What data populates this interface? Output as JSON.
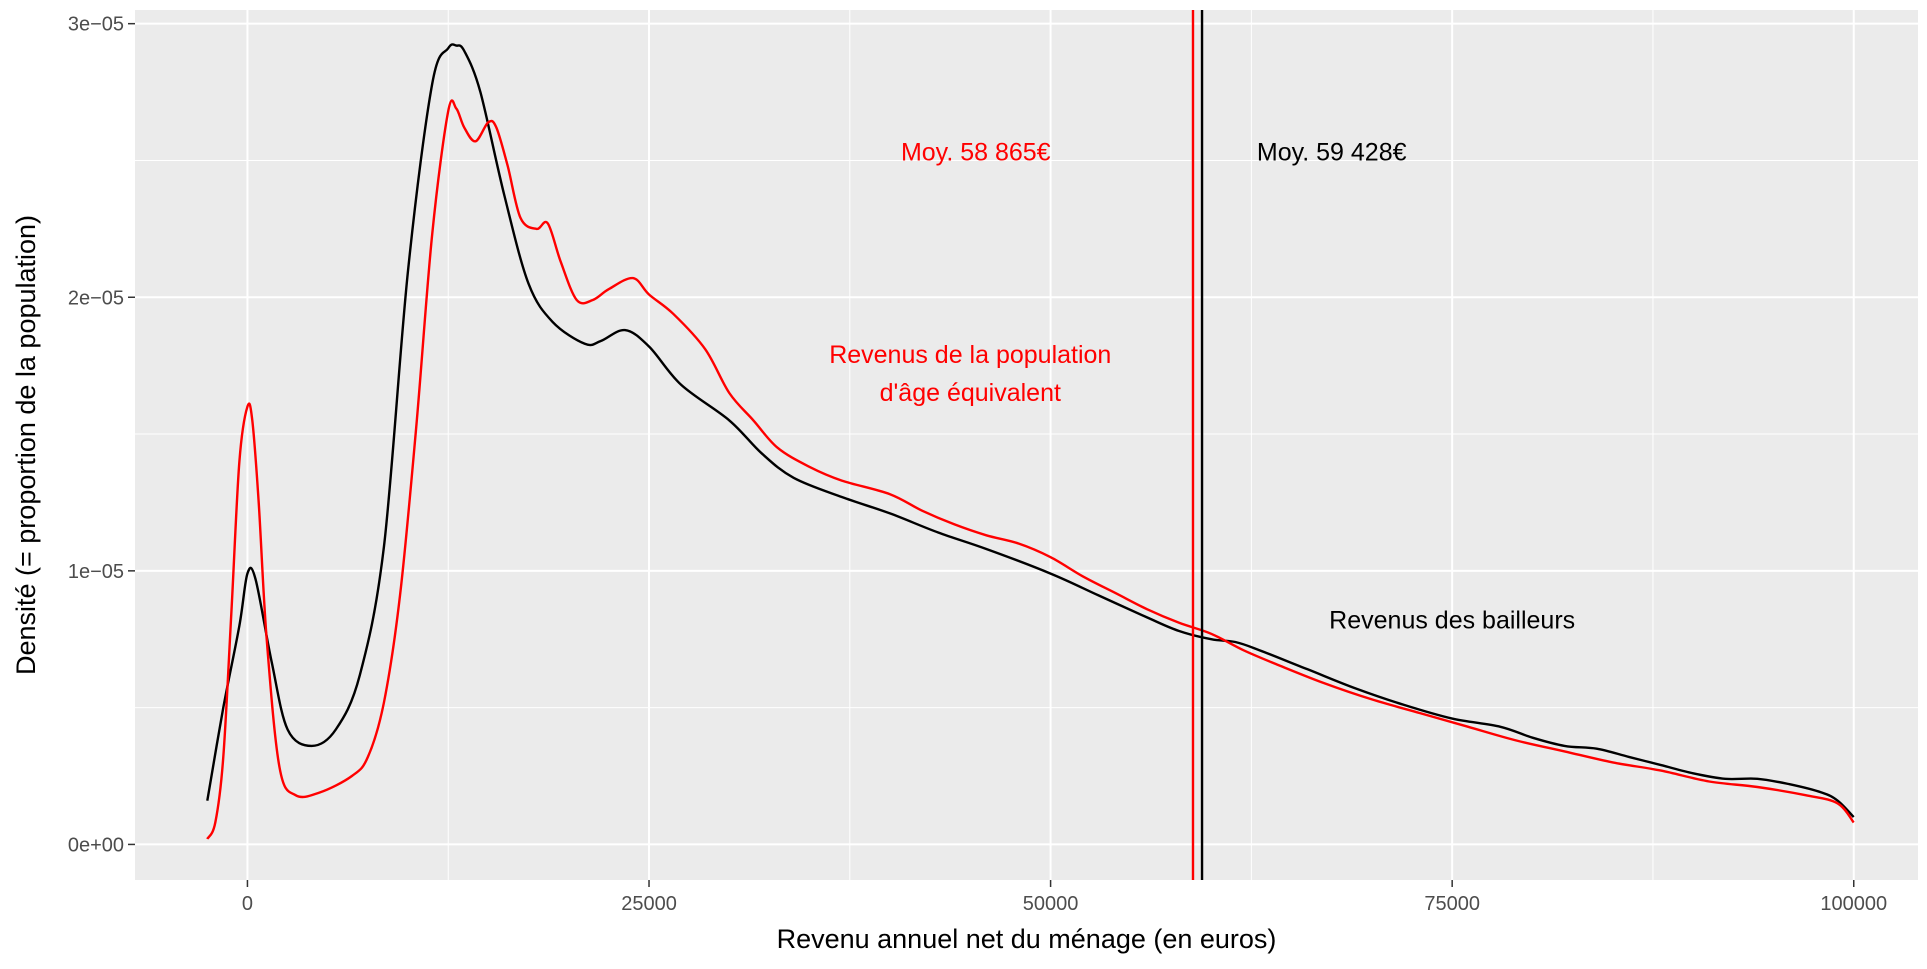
{
  "chart_data": {
    "type": "line",
    "title": "",
    "xlabel": "Revenu annuel net du ménage (en euros)",
    "ylabel": "Densité (= proportion de la population)",
    "xlim": [
      -7000,
      104000
    ],
    "ylim": [
      -1.3e-06,
      3.05e-05
    ],
    "grid": true,
    "legend": "none",
    "x_ticks": [
      {
        "value": 0,
        "label": "0"
      },
      {
        "value": 25000,
        "label": "25000"
      },
      {
        "value": 50000,
        "label": "50000"
      },
      {
        "value": 75000,
        "label": "75000"
      },
      {
        "value": 100000,
        "label": "100000"
      }
    ],
    "y_ticks": [
      {
        "value": 0,
        "label": "0e+00"
      },
      {
        "value": 1e-05,
        "label": "1e−05"
      },
      {
        "value": 2e-05,
        "label": "2e−05"
      },
      {
        "value": 3e-05,
        "label": "3e−05"
      }
    ],
    "series": [
      {
        "color": "#000000",
        "x": [
          -2500,
          -1500,
          -500,
          0,
          500,
          1500,
          2500,
          4000,
          5500,
          7000,
          8500,
          10000,
          11500,
          12500,
          13000,
          13500,
          14500,
          16000,
          17500,
          19000,
          21000,
          22000,
          23500,
          25000,
          27000,
          30000,
          32000,
          34000,
          37000,
          40000,
          43000,
          46000,
          50000,
          53000,
          56000,
          58000,
          60000,
          61500,
          63000,
          66000,
          69000,
          72000,
          75000,
          78000,
          80000,
          82000,
          84000,
          86000,
          88000,
          90000,
          92000,
          94000,
          96000,
          98000,
          99000,
          100000
        ],
        "y": [
          1.6e-06,
          5e-06,
          8e-06,
          9.9e-06,
          9.7e-06,
          6.7e-06,
          4.2e-06,
          3.6e-06,
          4.2e-06,
          6.2e-06,
          1.09e-05,
          2.1e-05,
          2.78e-05,
          2.91e-05,
          2.92e-05,
          2.9e-05,
          2.75e-05,
          2.37e-05,
          2.05e-05,
          1.91e-05,
          1.83e-05,
          1.84e-05,
          1.88e-05,
          1.82e-05,
          1.68e-05,
          1.55e-05,
          1.43e-05,
          1.34e-05,
          1.27e-05,
          1.21e-05,
          1.14e-05,
          1.08e-05,
          9.9e-06,
          9.1e-06,
          8.3e-06,
          7.8e-06,
          7.5e-06,
          7.4e-06,
          7.1e-06,
          6.4e-06,
          5.7e-06,
          5.1e-06,
          4.6e-06,
          4.3e-06,
          3.9e-06,
          3.6e-06,
          3.5e-06,
          3.2e-06,
          2.9e-06,
          2.6e-06,
          2.4e-06,
          2.4e-06,
          2.2e-06,
          1.9e-06,
          1.6e-06,
          1e-06
        ]
      },
      {
        "color": "#ff0000",
        "x": [
          -2500,
          -2000,
          -1500,
          -1000,
          -500,
          0,
          300,
          700,
          1200,
          2000,
          3000,
          4500,
          6500,
          7500,
          8500,
          9500,
          10500,
          11500,
          12500,
          13000,
          13500,
          14200,
          15000,
          15500,
          16200,
          17000,
          18000,
          18700,
          19500,
          20500,
          21500,
          22500,
          24000,
          25000,
          26500,
          28500,
          30000,
          31500,
          33000,
          35000,
          37000,
          40000,
          42000,
          44000,
          46000,
          48000,
          50000,
          52000,
          54000,
          56000,
          58000,
          60000,
          62000,
          64000,
          67000,
          70000,
          73000,
          76000,
          79000,
          82000,
          85000,
          88000,
          91000,
          94000,
          97000,
          99000,
          100000
        ],
        "y": [
          2e-07,
          8e-07,
          3.2e-06,
          8.5e-06,
          1.4e-05,
          1.6e-05,
          1.55e-05,
          1.25e-05,
          7.5e-06,
          2.8e-06,
          1.8e-06,
          1.9e-06,
          2.5e-06,
          3.2e-06,
          5.2e-06,
          9.1e-06,
          1.52e-05,
          2.23e-05,
          2.68e-05,
          2.69e-05,
          2.62e-05,
          2.57e-05,
          2.64e-05,
          2.62e-05,
          2.48e-05,
          2.29e-05,
          2.25e-05,
          2.27e-05,
          2.13e-05,
          1.99e-05,
          1.99e-05,
          2.03e-05,
          2.07e-05,
          2.01e-05,
          1.94e-05,
          1.81e-05,
          1.65e-05,
          1.55e-05,
          1.45e-05,
          1.38e-05,
          1.33e-05,
          1.28e-05,
          1.22e-05,
          1.17e-05,
          1.13e-05,
          1.1e-05,
          1.05e-05,
          9.8e-06,
          9.2e-06,
          8.6e-06,
          8.1e-06,
          7.7e-06,
          7.1e-06,
          6.6e-06,
          5.9e-06,
          5.3e-06,
          4.8e-06,
          4.3e-06,
          3.8e-06,
          3.4e-06,
          3e-06,
          2.7e-06,
          2.3e-06,
          2.1e-06,
          1.8e-06,
          1.5e-06,
          8e-07
        ]
      }
    ],
    "vlines": [
      {
        "x": 58865,
        "color": "#ff0000"
      },
      {
        "x": 59428,
        "color": "#000000"
      }
    ],
    "annotations": [
      {
        "text": "Moy. 58 865€",
        "x": 50000,
        "y": 2.5e-05,
        "color": "#ff0000",
        "anchor": "end"
      },
      {
        "text": "Moy. 59 428€",
        "x": 67500,
        "y": 2.5e-05,
        "color": "#000000",
        "anchor": "middle"
      },
      {
        "text": "Revenus de la population",
        "x": 45000,
        "y": 1.76e-05,
        "color": "#ff0000",
        "anchor": "middle"
      },
      {
        "text": "d'âge équivalent",
        "x": 45000,
        "y": 1.62e-05,
        "color": "#ff0000",
        "anchor": "middle"
      },
      {
        "text": "Revenus des bailleurs",
        "x": 75000,
        "y": 7.9e-06,
        "color": "#000000",
        "anchor": "middle"
      }
    ]
  }
}
